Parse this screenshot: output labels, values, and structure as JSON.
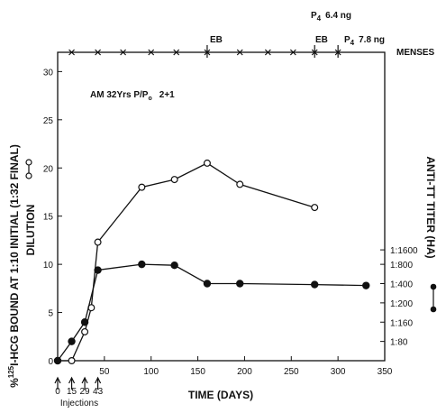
{
  "chart_data": {
    "type": "line",
    "xlabel": "TIME (DAYS)",
    "ylabel_left": "% 125 I-HCG BOUND AT 1:10 INITIAL (1:32 FINAL) DILUTION",
    "ylabel_left_prefix": "%",
    "ylabel_left_sup": "125",
    "ylabel_left_line1": "I-HCG BOUND AT 1:10 INITIAL (1:32 FINAL)",
    "ylabel_left_line2": "DILUTION",
    "ylabel_right": "ANTI-TT TITER (HA)",
    "xlim": [
      0,
      350
    ],
    "ylim": [
      0,
      32
    ],
    "x_ticks": [
      0,
      50,
      100,
      150,
      200,
      250,
      300,
      350
    ],
    "y_ticks": [
      0,
      5,
      10,
      15,
      20,
      25,
      30
    ],
    "right_ticks": [
      {
        "label": "1:1600",
        "y": 11.5
      },
      {
        "label": "1:800",
        "y": 10.0
      },
      {
        "label": "1:400",
        "y": 8.0
      },
      {
        "label": "1:200",
        "y": 6.0
      },
      {
        "label": "1:160",
        "y": 4.0
      },
      {
        "label": "1:80",
        "y": 2.0
      }
    ],
    "injection_days": [
      "0",
      "15",
      "29",
      "43"
    ],
    "injections_label": "Injections",
    "subject_label": "AM   32Yrs   P/P",
    "subject_label_sub": "o",
    "subject_label_suffix": "2+1",
    "menses_label": "MENSES",
    "menses_days": [
      15,
      43,
      70,
      100,
      127,
      160,
      195,
      225,
      252,
      275,
      300
    ],
    "top_annotations": [
      {
        "text": "EB",
        "x": 160
      },
      {
        "text": "EB",
        "x": 275
      }
    ],
    "p4_labels": [
      {
        "prefix": "P",
        "sub": "4",
        "value": "6.4 ng"
      },
      {
        "prefix": "P",
        "sub": "4",
        "value": "7.8 ng"
      }
    ],
    "series": [
      {
        "marker": "open-circle",
        "x": [
          0,
          15,
          29,
          36,
          43,
          90,
          125,
          160,
          195,
          275
        ],
        "y": [
          0,
          0,
          3,
          5.5,
          12.3,
          18.0,
          18.8,
          20.5,
          18.3,
          15.9
        ]
      },
      {
        "marker": "filled-circle",
        "x": [
          0,
          15,
          29,
          43,
          90,
          125,
          160,
          195,
          275,
          330
        ],
        "y": [
          0,
          2.0,
          4.0,
          9.4,
          10.0,
          9.9,
          8.0,
          8.0,
          7.9,
          7.8
        ]
      }
    ],
    "grid": false,
    "legend": "none"
  }
}
